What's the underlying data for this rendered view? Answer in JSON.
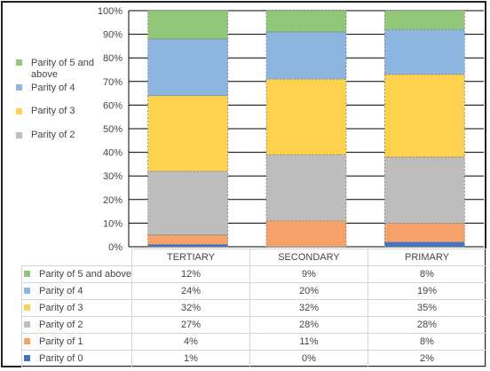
{
  "chart_data": {
    "type": "bar",
    "stacked": true,
    "percent_scale": true,
    "categories": [
      "TERTIARY",
      "SECONDARY",
      "PRIMARY"
    ],
    "yticks": [
      "0%",
      "10%",
      "20%",
      "30%",
      "40%",
      "50%",
      "60%",
      "70%",
      "80%",
      "90%",
      "100%"
    ],
    "ylim": [
      0,
      100
    ],
    "grid": true,
    "series": [
      {
        "name": "Parity of 0",
        "color": "#4472c4",
        "values": [
          "1%",
          "0%",
          "2%"
        ],
        "numeric": [
          1,
          0,
          2
        ]
      },
      {
        "name": "Parity of 1",
        "color": "#f4a26a",
        "values": [
          "4%",
          "11%",
          "8%"
        ],
        "numeric": [
          4,
          11,
          8
        ]
      },
      {
        "name": "Parity of 2",
        "color": "#bdbdbd",
        "values": [
          "27%",
          "28%",
          "28%"
        ],
        "numeric": [
          27,
          28,
          28
        ]
      },
      {
        "name": "Parity of 3",
        "color": "#ffd24d",
        "values": [
          "32%",
          "32%",
          "35%"
        ],
        "numeric": [
          32,
          32,
          35
        ]
      },
      {
        "name": "Parity of 4",
        "color": "#8cb6e0",
        "values": [
          "24%",
          "20%",
          "19%"
        ],
        "numeric": [
          24,
          20,
          19
        ]
      },
      {
        "name": "Parity of 5 and above",
        "color": "#92c77a",
        "values": [
          "12%",
          "9%",
          "8%"
        ],
        "numeric": [
          12,
          9,
          8
        ]
      }
    ],
    "legend": {
      "placement": "left",
      "entries": [
        {
          "label": "Parity of 5 and above",
          "color": "#92c77a"
        },
        {
          "label": "Parity of 4",
          "color": "#8cb6e0"
        },
        {
          "label": "Parity of 3",
          "color": "#ffd24d"
        },
        {
          "label": "Parity of 2",
          "color": "#bdbdbd"
        }
      ]
    },
    "table_rows_order": [
      "Parity of 5 and above",
      "Parity of 4",
      "Parity of 3",
      "Parity of 2",
      "Parity of 1",
      "Parity of 0"
    ]
  }
}
